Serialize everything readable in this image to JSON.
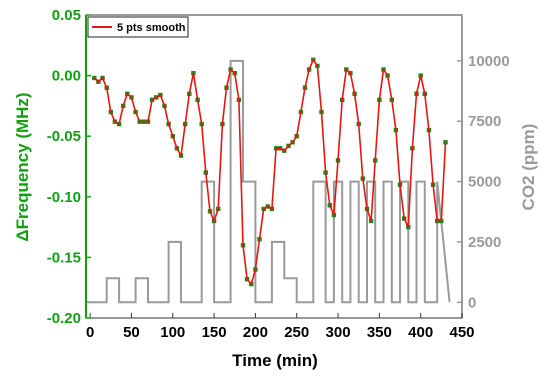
{
  "chart_data": {
    "type": "line",
    "xlabel": "Time (min)",
    "ylabel_left": "ΔFrequency (MHz)",
    "ylabel_right": "CO2 (ppm)",
    "xlim": [
      -5,
      450
    ],
    "ylim_left": [
      -0.2,
      0.05
    ],
    "ylim_right": [
      -650,
      11900
    ],
    "x_ticks": [
      0,
      50,
      100,
      150,
      200,
      250,
      300,
      350,
      400,
      450
    ],
    "y_left_ticks": [
      0.05,
      0.0,
      -0.05,
      -0.1,
      -0.15,
      -0.2
    ],
    "y_left_tick_labels": [
      "0.05",
      "0.00",
      "-0.05",
      "-0.10",
      "-0.15",
      "-0.20"
    ],
    "y_right_ticks": [
      0,
      2500,
      5000,
      7500,
      10000
    ],
    "y_right_tick_labels": [
      "0",
      "2500",
      "5000",
      "7500",
      "10000"
    ],
    "grid": false,
    "legend": {
      "position": "top-left",
      "entries": [
        "5 pts smooth"
      ]
    },
    "colors": {
      "frequency_points": "#1a8a1a",
      "frequency_smooth": "#e8160f",
      "co2_line": "#9a9a9a",
      "left_axis": "#12a012",
      "right_axis": "#9a9a9a"
    },
    "series": [
      {
        "name": "5 pts smooth",
        "axis": "left",
        "x": [
          5,
          10,
          15,
          20,
          25,
          30,
          35,
          40,
          45,
          50,
          55,
          60,
          65,
          70,
          75,
          80,
          85,
          90,
          95,
          100,
          105,
          110,
          115,
          120,
          125,
          130,
          135,
          140,
          145,
          150,
          155,
          160,
          165,
          170,
          175,
          180,
          185,
          190,
          195,
          200,
          205,
          210,
          215,
          220,
          225,
          230,
          235,
          240,
          245,
          250,
          255,
          260,
          265,
          270,
          275,
          280,
          285,
          290,
          295,
          300,
          305,
          310,
          315,
          320,
          325,
          330,
          335,
          340,
          345,
          350,
          355,
          360,
          365,
          370,
          375,
          380,
          385,
          390,
          395,
          400,
          405,
          410,
          415,
          420,
          425,
          430
        ],
        "values": [
          -0.002,
          -0.005,
          -0.002,
          -0.01,
          -0.03,
          -0.038,
          -0.04,
          -0.025,
          -0.015,
          -0.018,
          -0.03,
          -0.038,
          -0.038,
          -0.038,
          -0.02,
          -0.018,
          -0.016,
          -0.025,
          -0.04,
          -0.05,
          -0.06,
          -0.066,
          -0.04,
          -0.015,
          0.002,
          -0.02,
          -0.04,
          -0.08,
          -0.112,
          -0.12,
          -0.11,
          -0.04,
          -0.01,
          0.005,
          0.002,
          -0.02,
          -0.14,
          -0.168,
          -0.172,
          -0.16,
          -0.135,
          -0.11,
          -0.108,
          -0.11,
          -0.06,
          -0.06,
          -0.062,
          -0.058,
          -0.055,
          -0.05,
          -0.03,
          -0.01,
          0.005,
          0.013,
          0.008,
          -0.03,
          -0.08,
          -0.107,
          -0.115,
          -0.07,
          -0.02,
          0.005,
          0.002,
          -0.015,
          -0.04,
          -0.085,
          -0.11,
          -0.12,
          -0.07,
          -0.02,
          0.005,
          0.0,
          -0.02,
          -0.045,
          -0.09,
          -0.118,
          -0.125,
          -0.06,
          -0.015,
          0.0,
          -0.015,
          -0.045,
          -0.09,
          -0.12,
          -0.12,
          -0.055
        ],
        "marker_series": "raw data points"
      },
      {
        "name": "",
        "axis": "right",
        "x": [
          -5,
          10,
          20,
          20,
          35,
          35,
          55,
          55,
          70,
          70,
          95,
          95,
          110,
          110,
          135,
          135,
          150,
          150,
          170,
          170,
          185,
          185,
          200,
          200,
          220,
          220,
          235,
          235,
          250,
          250,
          270,
          270,
          285,
          285,
          295,
          295,
          305,
          305,
          315,
          315,
          325,
          325,
          335,
          335,
          345,
          345,
          355,
          355,
          365,
          365,
          375,
          375,
          385,
          385,
          395,
          395,
          405,
          405,
          420,
          420,
          435
        ],
        "values": [
          0,
          0,
          0,
          1000,
          1000,
          0,
          0,
          1000,
          1000,
          0,
          0,
          2500,
          2500,
          0,
          0,
          5000,
          5000,
          0,
          0,
          10000,
          10000,
          5000,
          5000,
          0,
          0,
          2500,
          2500,
          1000,
          1000,
          0,
          0,
          5000,
          5000,
          0,
          0,
          5000,
          5000,
          0,
          0,
          5000,
          5000,
          0,
          0,
          5000,
          5000,
          0,
          0,
          5000,
          5000,
          0,
          0,
          5000,
          5000,
          0,
          0,
          5000,
          5000,
          0,
          0,
          5000,
          0
        ]
      }
    ]
  }
}
